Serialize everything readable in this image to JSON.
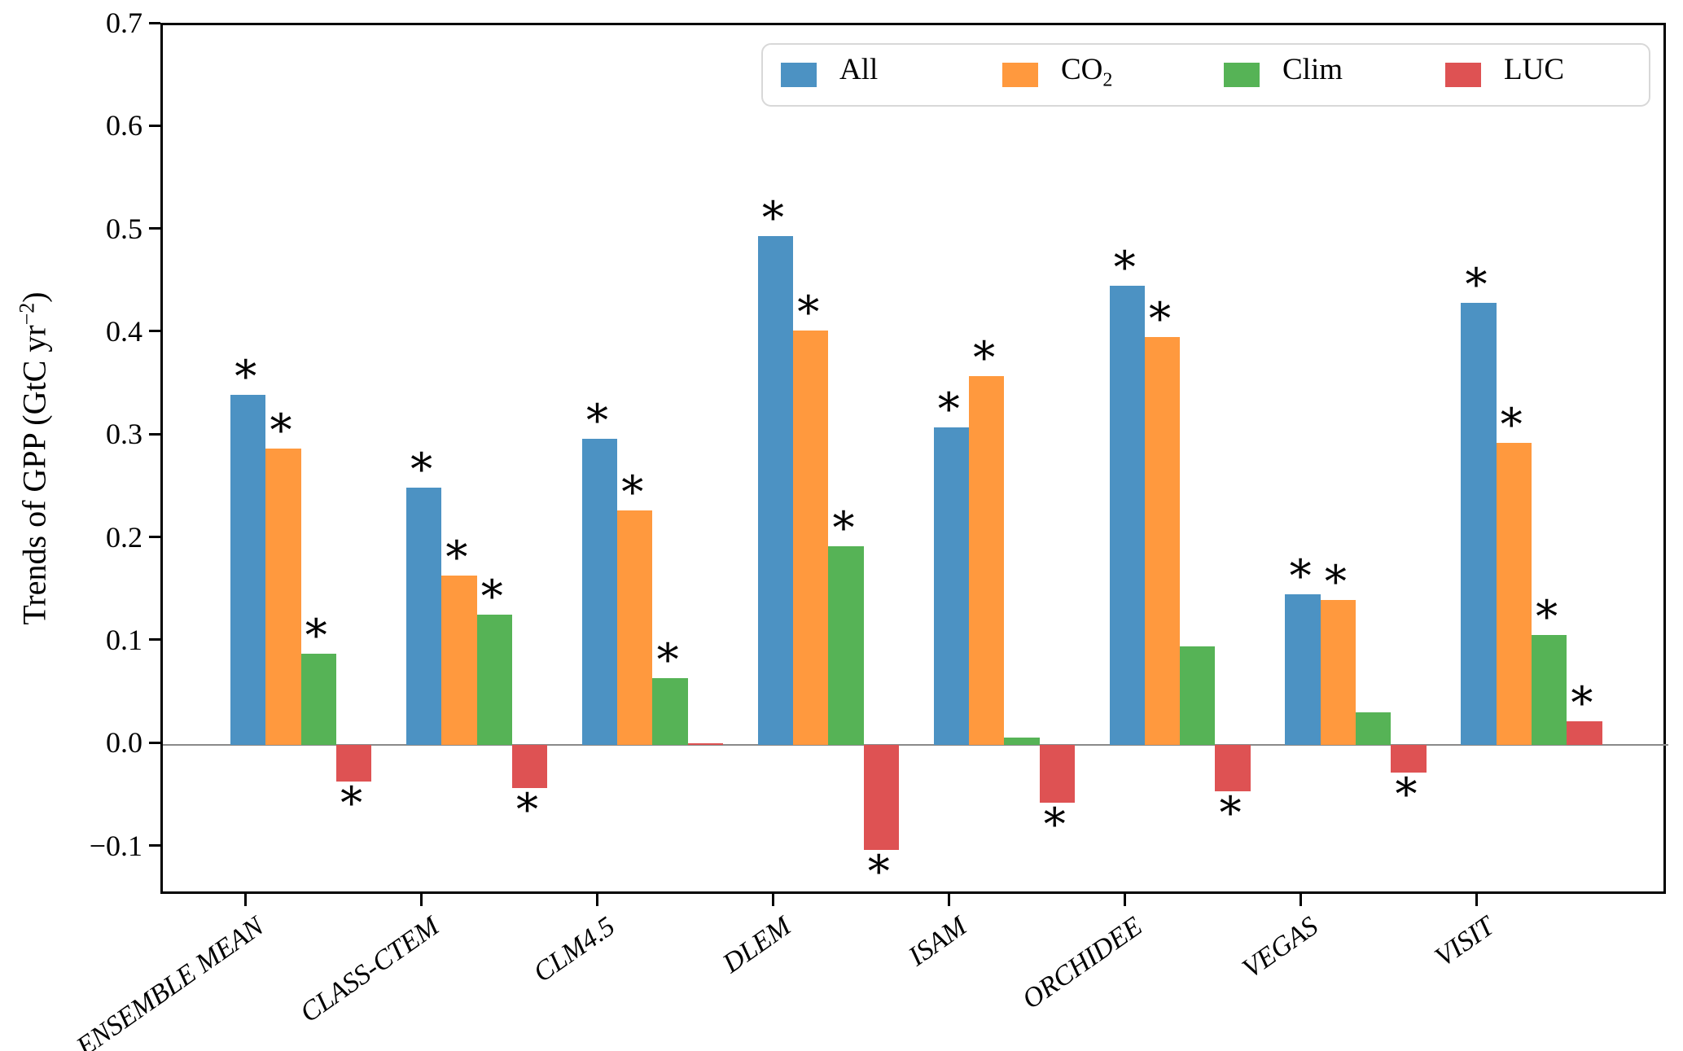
{
  "chart_data": {
    "type": "bar",
    "title": "",
    "xlabel": "",
    "ylabel": "Trends of GPP (GtC yr−2)",
    "ylabel_parts": {
      "pre": "Trends of GPP (GtC yr",
      "sup": "−2",
      "post": ")"
    },
    "ylim": [
      -0.147,
      0.7
    ],
    "grid": false,
    "legend_position": "upper right inside, horizontal",
    "significance_marker": "*",
    "zero_line_color": "#8a8a8a",
    "ytick_values": [
      0.7,
      0.6,
      0.5,
      0.4,
      0.3,
      0.2,
      0.1,
      0.0,
      -0.1
    ],
    "ytick_labels": [
      "0.7",
      "0.6",
      "0.5",
      "0.4",
      "0.3",
      "0.2",
      "0.1",
      "0.0",
      "−0.1"
    ],
    "categories": [
      "ENSEMBLE MEAN",
      "CLASS-CTEM",
      "CLM4.5",
      "DLEM",
      "ISAM",
      "ORCHIDEE",
      "VEGAS",
      "VISIT"
    ],
    "legend": [
      {
        "label": "All",
        "sub": ""
      },
      {
        "label": "CO",
        "sub": "2"
      },
      {
        "label": "Clim",
        "sub": ""
      },
      {
        "label": "LUC",
        "sub": ""
      }
    ],
    "series": [
      {
        "name": "All",
        "color": "#4C92C3",
        "values": [
          0.341,
          0.25,
          0.298,
          0.495,
          0.309,
          0.447,
          0.147,
          0.43
        ],
        "significant": [
          true,
          true,
          true,
          true,
          true,
          true,
          true,
          true
        ]
      },
      {
        "name": "CO2",
        "color": "#FF993E",
        "values": [
          0.288,
          0.165,
          0.228,
          0.403,
          0.359,
          0.397,
          0.141,
          0.294
        ],
        "significant": [
          true,
          true,
          true,
          true,
          true,
          true,
          true,
          true
        ]
      },
      {
        "name": "Clim",
        "color": "#56B356",
        "values": [
          0.089,
          0.127,
          0.065,
          0.193,
          0.007,
          0.096,
          0.032,
          0.107
        ],
        "significant": [
          true,
          true,
          true,
          true,
          false,
          false,
          false,
          true
        ]
      },
      {
        "name": "LUC",
        "color": "#DE5253",
        "values": [
          -0.035,
          -0.042,
          0.002,
          -0.102,
          -0.056,
          -0.045,
          -0.027,
          0.023
        ],
        "significant": [
          true,
          true,
          false,
          true,
          true,
          true,
          true,
          true
        ]
      }
    ]
  }
}
